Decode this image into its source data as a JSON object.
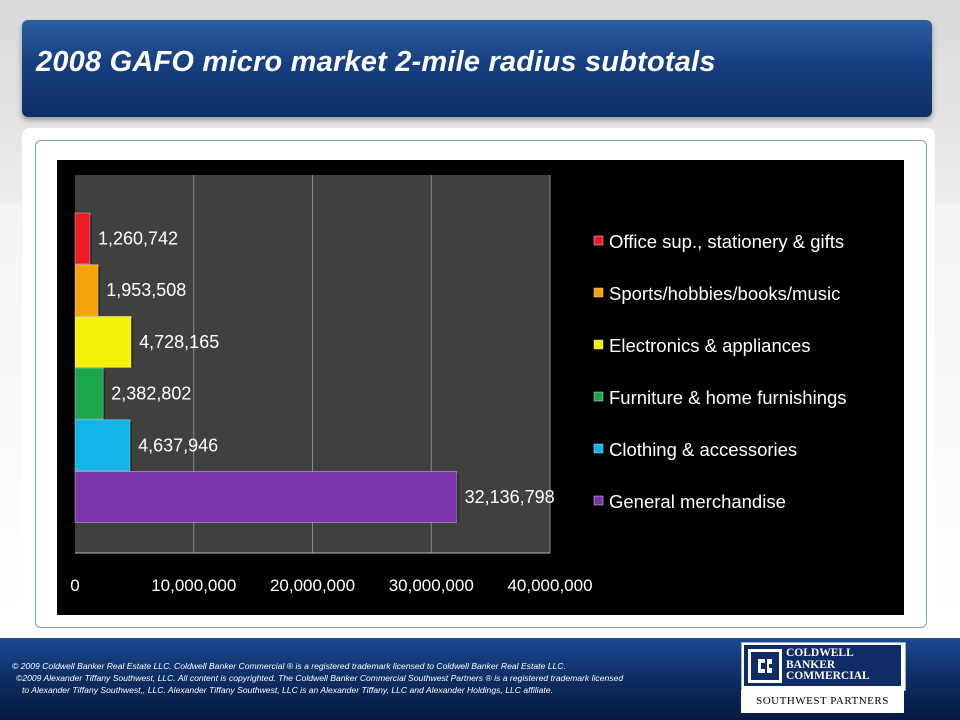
{
  "slide": {
    "title": "2008 GAFO micro market 2-mile radius subtotals"
  },
  "chart_data": {
    "type": "bar",
    "orientation": "horizontal",
    "categories": [
      "Office sup., stationery & gifts",
      "Sports/hobbies/books/music",
      "Electronics & appliances",
      "Furniture & home furnishings",
      "Clothing & accessories",
      "General merchandise"
    ],
    "values": [
      1260742,
      1953508,
      4728165,
      2382802,
      4637946,
      32136798
    ],
    "data_labels": [
      "1,260,742",
      "1,953,508",
      "4,728,165",
      "2,382,802",
      "4,637,946",
      "32,136,798"
    ],
    "colors": [
      "#ee1c25",
      "#f7a20a",
      "#f4f20a",
      "#1ca84a",
      "#12b4ec",
      "#7b35ad"
    ],
    "xlim": [
      0,
      40000000
    ],
    "x_ticks": [
      0,
      10000000,
      20000000,
      30000000,
      40000000
    ],
    "x_tick_labels": [
      "0",
      "10,000,000",
      "20,000,000",
      "30,000,000",
      "40,000,000"
    ],
    "grid": true,
    "legend_position": "right",
    "plot_background": "#404040",
    "figure_background": "#000000"
  },
  "footer": {
    "line1": "©  2009 Coldwell Banker Real Estate LLC. Coldwell Banker Commercial ® is a registered trademark licensed to Coldwell Banker Real Estate LLC.",
    "line2": "©2009 Alexander Tiffany Southwest, LLC. All content is copyrighted. The Coldwell Banker Commercial Southwest Partners ® is a registered trademark licensed",
    "line3": "to Alexander Tiffany Southwest,, LLC.  Alexander Tiffany Southwest, LLC is an Alexander Tiffany, LLC and Alexander Holdings, LLC affiliate."
  },
  "logo": {
    "line1": "COLDWELL",
    "line2": "BANKER",
    "line3": "COMMERCIAL",
    "tagline": "SOUTHWEST PARTNERS"
  }
}
